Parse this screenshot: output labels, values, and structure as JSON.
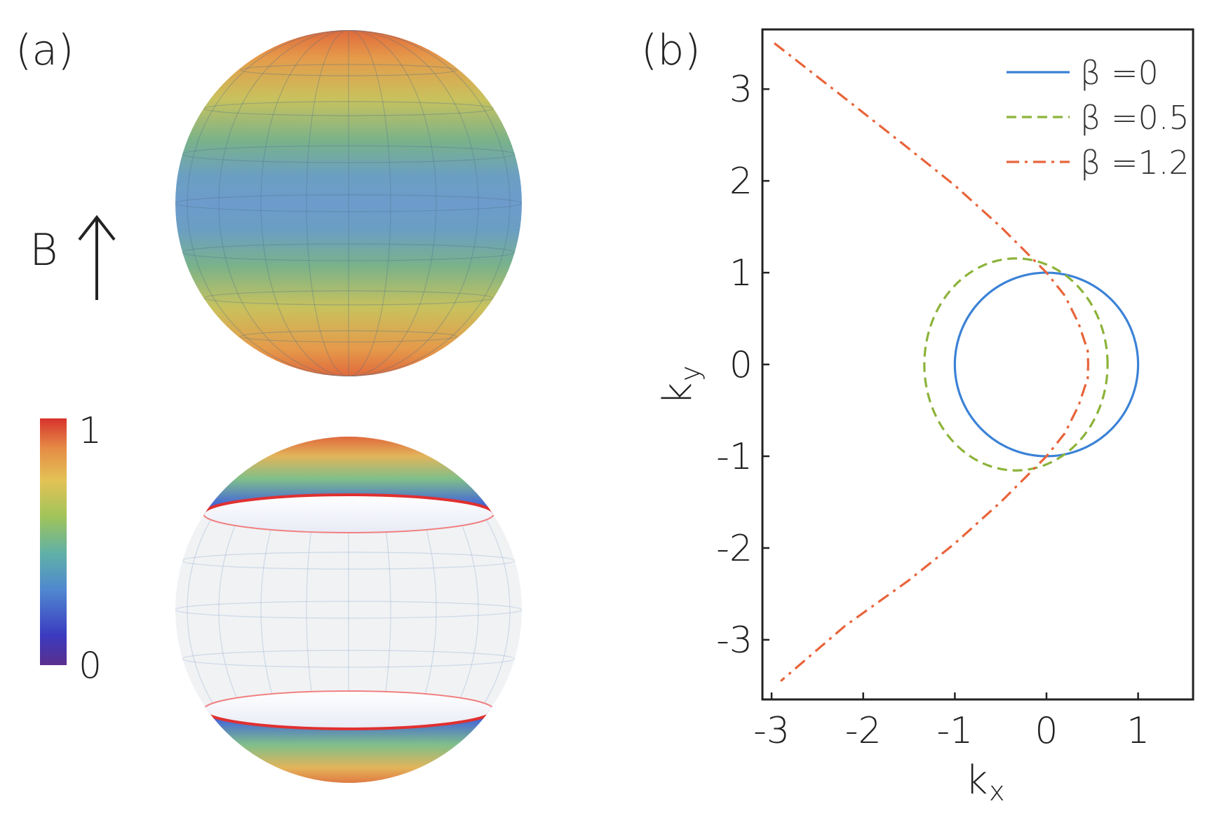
{
  "panels": {
    "a": {
      "label": "(a)",
      "field_label": "B",
      "colorbar": {
        "max_label": "1",
        "min_label": "0"
      }
    },
    "b": {
      "label": "(b)"
    }
  },
  "chart_data": {
    "type": "line",
    "xlabel": "k",
    "xlabel_sub": "x",
    "ylabel": "k",
    "ylabel_sub": "y",
    "xlim": [
      -3.1,
      1.6
    ],
    "ylim": [
      -3.65,
      3.65
    ],
    "xticks": [
      -3,
      -2,
      -1,
      0,
      1
    ],
    "yticks": [
      -3,
      -2,
      -1,
      0,
      1,
      2,
      3
    ],
    "legend_position": "top-right",
    "series": [
      {
        "name": "β =0",
        "color": "#3b82d6",
        "style": "solid",
        "x": [
          1.0,
          0.866,
          0.5,
          0.0,
          -0.5,
          -0.866,
          -1.0,
          -0.866,
          -0.5,
          0.0,
          0.5,
          0.866,
          1.0
        ],
        "y": [
          0.0,
          0.5,
          0.866,
          1.0,
          0.866,
          0.5,
          0.0,
          -0.5,
          -0.866,
          -1.0,
          -0.866,
          -0.5,
          0.0
        ]
      },
      {
        "name": "β =0.5",
        "color": "#8cb33a",
        "style": "dashed",
        "x": [
          0.667,
          0.552,
          0.236,
          -0.2,
          -0.667,
          -1.069,
          -1.333,
          -1.426,
          -1.333,
          -1.069,
          -0.667,
          -0.2,
          0.236,
          0.552,
          0.667
        ],
        "y": [
          0.0,
          0.577,
          1.0,
          1.155,
          1.0,
          0.577,
          0.0,
          0.0,
          0.0,
          -0.577,
          -1.0,
          -1.155,
          -1.0,
          -0.577,
          0.0
        ]
      },
      {
        "name": "β =1.2",
        "color": "#e8643a",
        "style": "dashdot",
        "x": [
          -2.97,
          -2.2,
          -1.5,
          -1.0,
          -0.5,
          -0.2,
          0.0,
          0.2,
          0.35,
          0.45,
          0.455,
          0.45,
          0.35,
          0.2,
          0.0,
          -0.2,
          -0.5,
          -1.0,
          -1.5,
          -2.2,
          -2.9
        ],
        "y": [
          3.5,
          2.9,
          2.35,
          1.95,
          1.5,
          1.2,
          1.0,
          0.75,
          0.45,
          0.15,
          0.0,
          -0.15,
          -0.45,
          -0.75,
          -1.0,
          -1.2,
          -1.5,
          -1.95,
          -2.35,
          -2.85,
          -3.45
        ]
      }
    ]
  }
}
